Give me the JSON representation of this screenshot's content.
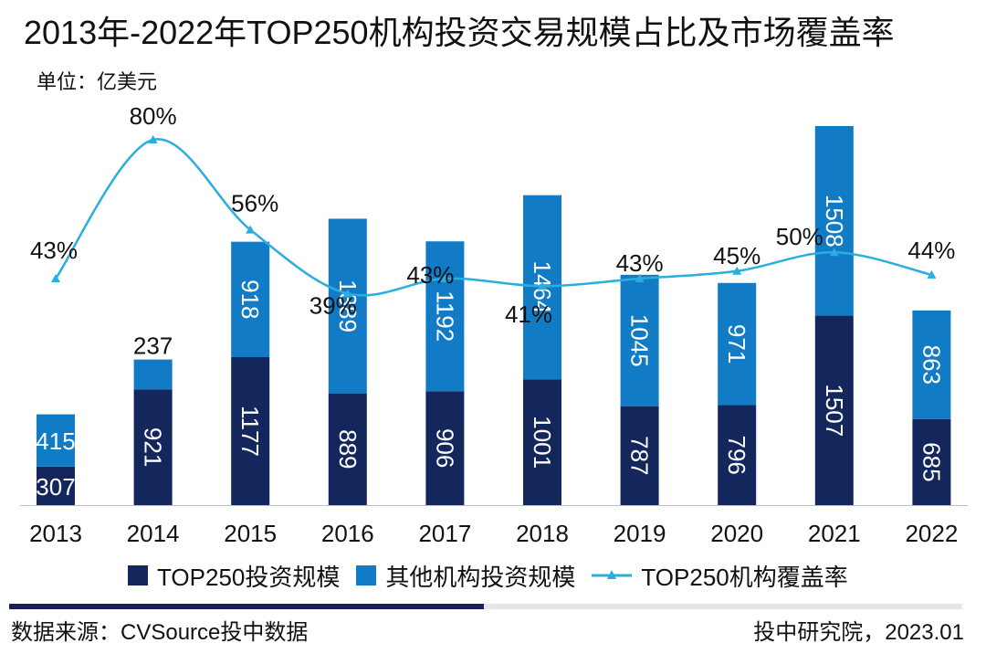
{
  "header": {
    "title": "2013年-2022年TOP250机构投资交易规模占比及市场覆盖率",
    "unit": "单位：亿美元"
  },
  "footer": {
    "source": "数据来源：CVSource投中数据",
    "credit": "投中研究院，2023.01"
  },
  "colors": {
    "top250": "#14275c",
    "others": "#127bc6",
    "rate": "#2aaee0"
  },
  "chart_data": {
    "type": "bar",
    "stacked": true,
    "title": "2013年-2022年TOP250机构投资交易规模占比及市场覆盖率",
    "ylabel": "单位：亿美元",
    "categories": [
      "2013",
      "2014",
      "2015",
      "2016",
      "2017",
      "2018",
      "2019",
      "2020",
      "2021",
      "2022"
    ],
    "series": [
      {
        "name": "TOP250投资规模",
        "type": "bar",
        "values": [
          307,
          921,
          1177,
          889,
          906,
          1001,
          787,
          796,
          1507,
          685
        ]
      },
      {
        "name": "其他机构投资规模",
        "type": "bar",
        "values": [
          415,
          237,
          918,
          1389,
          1192,
          1464,
          1045,
          971,
          1508,
          863
        ]
      },
      {
        "name": "TOP250机构覆盖率",
        "type": "line",
        "values": [
          43,
          80,
          56,
          39,
          43,
          41,
          43,
          45,
          50,
          44
        ],
        "labels": [
          "43%",
          "80%",
          "56%",
          "39%",
          "43%",
          "41%",
          "43%",
          "45%",
          "50%",
          "44%"
        ]
      }
    ],
    "legend_position": "bottom",
    "grid": false
  }
}
